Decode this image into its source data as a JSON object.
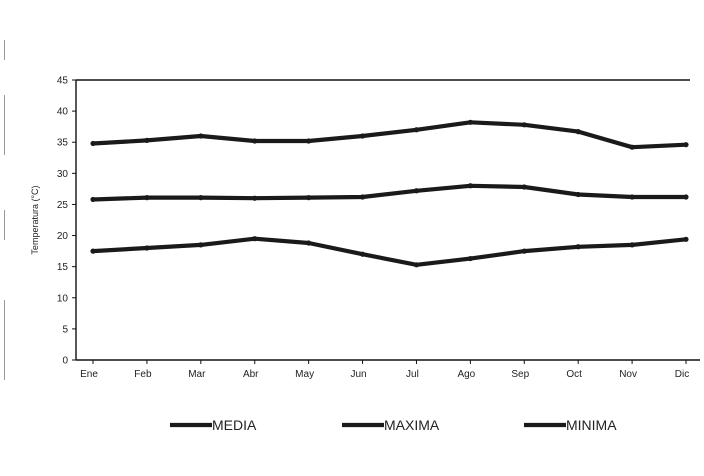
{
  "chart_data": {
    "type": "line",
    "title": "",
    "xlabel": "",
    "ylabel": "Temperatura (°C)",
    "ylim": [
      0,
      45
    ],
    "yticks": [
      "0",
      "5",
      "10",
      "15",
      "20",
      "25",
      "30",
      "35",
      "40",
      "45"
    ],
    "categories": [
      "Ene",
      "Feb",
      "Mar",
      "Abr",
      "May",
      "Jun",
      "Jul",
      "Ago",
      "Sep",
      "Oct",
      "Nov",
      "Dic"
    ],
    "grid": false,
    "legend_position": "bottom",
    "series": [
      {
        "name": "MAXIMA",
        "color": "#1a1a1a",
        "values": [
          34.8,
          35.3,
          36.0,
          35.2,
          35.2,
          36.0,
          37.0,
          38.2,
          37.8,
          36.7,
          34.2,
          34.6
        ]
      },
      {
        "name": "MEDIA",
        "color": "#1a1a1a",
        "values": [
          25.8,
          26.1,
          26.1,
          26.0,
          26.1,
          26.2,
          27.2,
          28.0,
          27.8,
          26.6,
          26.2,
          26.2
        ]
      },
      {
        "name": "MINIMA",
        "color": "#1a1a1a",
        "values": [
          17.5,
          18.0,
          18.5,
          19.5,
          18.8,
          17.0,
          15.3,
          16.3,
          17.5,
          18.2,
          18.5,
          19.4
        ]
      }
    ],
    "legend": [
      "MEDIA",
      "MAXIMA",
      "MINIMA"
    ]
  }
}
